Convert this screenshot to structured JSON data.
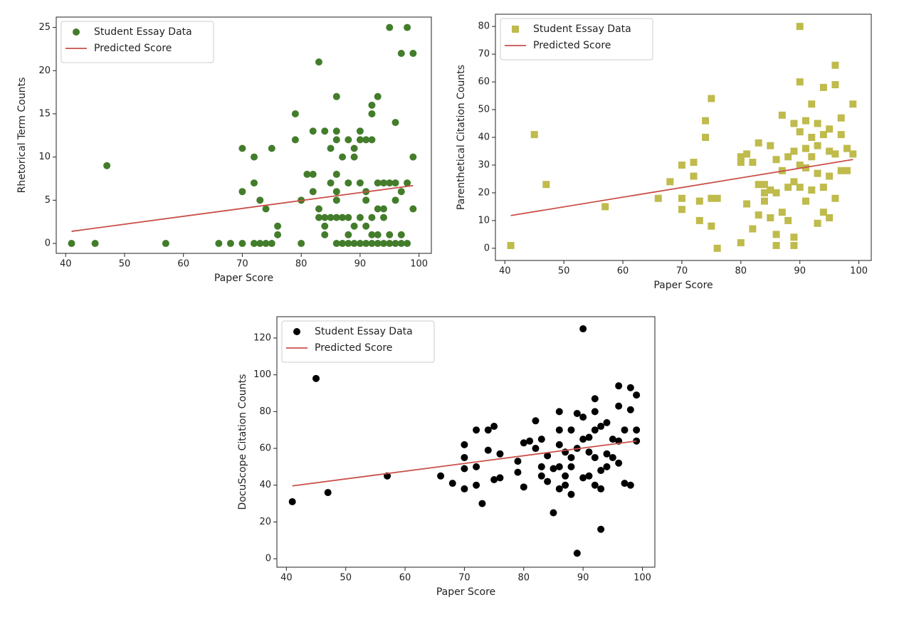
{
  "chart_data": [
    {
      "type": "scatter",
      "xlabel": "Paper Score",
      "ylabel": "Rhetorical Term Counts",
      "xlim": [
        38.4,
        102.1
      ],
      "ylim": [
        -1.15,
        26.2
      ],
      "xticks": [
        40,
        50,
        60,
        70,
        80,
        90,
        100
      ],
      "yticks": [
        0,
        5,
        10,
        15,
        20,
        25
      ],
      "legend": "upper-left",
      "series": [
        {
          "name": "Student Essay Data",
          "kind": "scatter",
          "marker": "circle",
          "color": "#437d2b",
          "x": [
            41,
            45,
            47,
            57,
            66,
            68,
            70,
            70,
            70,
            72,
            72,
            72,
            73,
            73,
            74,
            74,
            75,
            75,
            76,
            76,
            79,
            79,
            80,
            80,
            81,
            82,
            82,
            82,
            83,
            83,
            83,
            84,
            84,
            84,
            84,
            85,
            85,
            85,
            86,
            86,
            86,
            86,
            86,
            86,
            86,
            86,
            87,
            87,
            87,
            88,
            88,
            88,
            88,
            88,
            89,
            89,
            89,
            89,
            90,
            90,
            90,
            90,
            90,
            91,
            91,
            91,
            91,
            91,
            92,
            92,
            92,
            92,
            92,
            92,
            93,
            93,
            93,
            93,
            93,
            94,
            94,
            94,
            94,
            95,
            95,
            95,
            95,
            96,
            96,
            96,
            96,
            97,
            97,
            97,
            97,
            98,
            98,
            98,
            99,
            99,
            99
          ],
          "values": [
            0,
            0,
            9,
            0,
            0,
            0,
            0,
            6,
            11,
            7,
            10,
            0,
            0,
            5,
            4,
            0,
            0,
            11,
            1,
            2,
            12,
            15,
            5,
            0,
            8,
            8,
            13,
            6,
            21,
            4,
            3,
            13,
            1,
            3,
            2,
            3,
            7,
            11,
            17,
            13,
            12,
            8,
            6,
            5,
            3,
            0,
            3,
            10,
            0,
            12,
            7,
            3,
            1,
            0,
            11,
            10,
            2,
            0,
            13,
            12,
            7,
            3,
            0,
            12,
            6,
            5,
            2,
            0,
            15,
            16,
            12,
            3,
            1,
            0,
            17,
            7,
            4,
            1,
            0,
            7,
            4,
            3,
            0,
            25,
            7,
            1,
            0,
            14,
            7,
            5,
            0,
            22,
            6,
            1,
            0,
            25,
            7,
            0,
            22,
            10,
            4
          ]
        },
        {
          "name": "Predicted Score",
          "kind": "line",
          "color": "#c9504a",
          "x": [
            41,
            99
          ],
          "values": [
            1.4,
            6.7
          ]
        }
      ]
    },
    {
      "type": "scatter",
      "xlabel": "Paper Score",
      "ylabel": "Parenthetical Citation Counts",
      "xlim": [
        38.4,
        102.1
      ],
      "ylim": [
        -4.4,
        84.4
      ],
      "xticks": [
        40,
        50,
        60,
        70,
        80,
        90,
        100
      ],
      "yticks": [
        0,
        10,
        20,
        30,
        40,
        50,
        60,
        70,
        80
      ],
      "legend": "upper-left",
      "series": [
        {
          "name": "Student Essay Data",
          "kind": "scatter",
          "marker": "square",
          "color": "#bfbb4c",
          "x": [
            41,
            45,
            47,
            57,
            66,
            68,
            70,
            70,
            70,
            72,
            72,
            73,
            73,
            74,
            74,
            75,
            75,
            75,
            76,
            76,
            80,
            80,
            80,
            81,
            81,
            82,
            82,
            83,
            83,
            83,
            84,
            84,
            84,
            85,
            85,
            85,
            86,
            86,
            86,
            86,
            87,
            87,
            87,
            88,
            88,
            88,
            89,
            89,
            89,
            89,
            89,
            90,
            90,
            90,
            90,
            90,
            91,
            91,
            91,
            91,
            92,
            92,
            92,
            92,
            93,
            93,
            93,
            93,
            94,
            94,
            94,
            94,
            95,
            95,
            95,
            95,
            96,
            96,
            96,
            96,
            97,
            97,
            97,
            98,
            98,
            99,
            99
          ],
          "values": [
            1,
            41,
            23,
            15,
            18,
            24,
            30,
            18,
            14,
            31,
            26,
            17,
            10,
            46,
            40,
            54,
            18,
            8,
            0,
            18,
            33,
            31,
            2,
            34,
            16,
            7,
            31,
            38,
            23,
            12,
            23,
            17,
            20,
            37,
            21,
            11,
            32,
            20,
            5,
            1,
            48,
            28,
            13,
            33,
            22,
            10,
            45,
            35,
            24,
            4,
            1,
            80,
            60,
            42,
            30,
            22,
            46,
            36,
            29,
            17,
            52,
            40,
            33,
            21,
            45,
            37,
            27,
            9,
            58,
            41,
            22,
            13,
            43,
            35,
            26,
            11,
            66,
            59,
            34,
            18,
            47,
            41,
            28,
            36,
            28,
            52,
            34
          ]
        },
        {
          "name": "Predicted Score",
          "kind": "line",
          "color": "#c9504a",
          "x": [
            41,
            99
          ],
          "values": [
            11.8,
            32
          ]
        }
      ]
    },
    {
      "type": "scatter",
      "xlabel": "Paper Score",
      "ylabel": "DocuScope Citation Counts",
      "xlim": [
        38.4,
        102.1
      ],
      "ylim": [
        -4.6,
        131.6
      ],
      "xticks": [
        40,
        50,
        60,
        70,
        80,
        90,
        100
      ],
      "yticks": [
        0,
        20,
        40,
        60,
        80,
        100,
        120
      ],
      "legend": "upper-left",
      "series": [
        {
          "name": "Student Essay Data",
          "kind": "scatter",
          "marker": "circle",
          "color": "#000000",
          "x": [
            41,
            45,
            47,
            57,
            66,
            68,
            70,
            70,
            70,
            70,
            72,
            72,
            72,
            73,
            74,
            74,
            75,
            75,
            76,
            76,
            79,
            79,
            80,
            80,
            81,
            82,
            82,
            83,
            83,
            83,
            84,
            84,
            85,
            85,
            86,
            86,
            86,
            86,
            86,
            87,
            87,
            87,
            88,
            88,
            88,
            88,
            89,
            89,
            89,
            90,
            90,
            90,
            90,
            91,
            91,
            91,
            92,
            92,
            92,
            92,
            92,
            93,
            93,
            93,
            93,
            94,
            94,
            94,
            95,
            95,
            96,
            96,
            96,
            96,
            97,
            97,
            98,
            98,
            98,
            99,
            99,
            99
          ],
          "values": [
            31,
            98,
            36,
            45,
            45,
            41,
            62,
            55,
            49,
            38,
            70,
            50,
            40,
            30,
            70,
            59,
            72,
            43,
            57,
            44,
            53,
            47,
            63,
            39,
            64,
            75,
            60,
            65,
            50,
            45,
            56,
            42,
            49,
            25,
            80,
            70,
            62,
            50,
            38,
            58,
            45,
            40,
            70,
            55,
            50,
            35,
            79,
            60,
            3,
            125,
            77,
            65,
            44,
            66,
            58,
            45,
            87,
            80,
            70,
            55,
            40,
            72,
            48,
            38,
            16,
            74,
            57,
            50,
            65,
            55,
            94,
            83,
            64,
            52,
            70,
            41,
            93,
            81,
            40,
            89,
            70,
            64
          ]
        },
        {
          "name": "Predicted Score",
          "kind": "line",
          "color": "#c9504a",
          "x": [
            41,
            99
          ],
          "values": [
            39.6,
            64
          ]
        }
      ]
    }
  ]
}
